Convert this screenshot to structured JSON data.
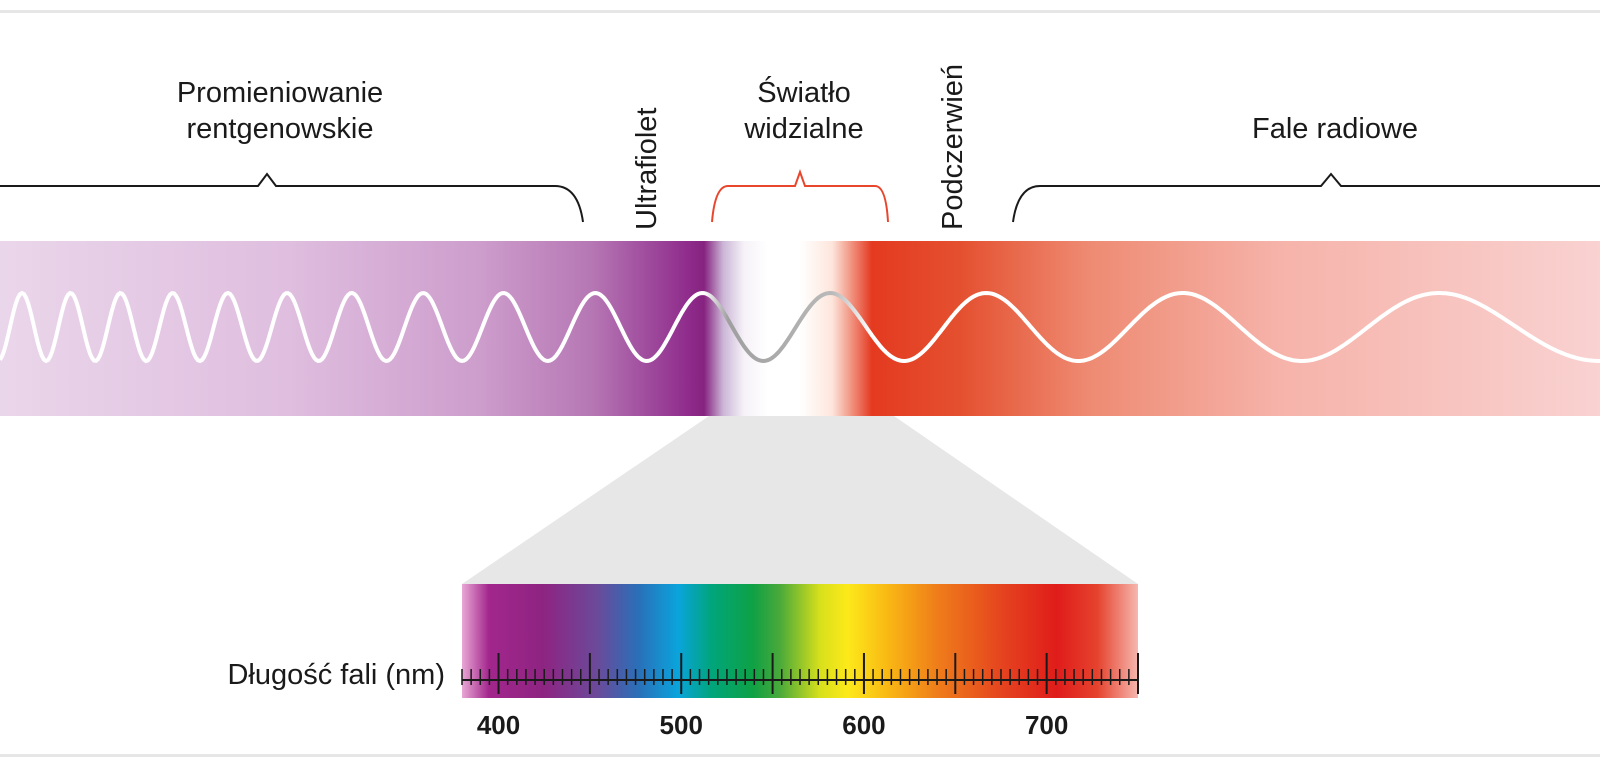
{
  "regions": {
    "xray": [
      "Promieniowanie",
      "rentgenowskie"
    ],
    "uv": "Ultrafiolet",
    "visible": [
      "Światło",
      "widzialne"
    ],
    "ir": "Podczerwień",
    "radio": "Fale radiowe"
  },
  "axis": {
    "label": "Długość fali (nm)",
    "ticks": [
      {
        "value": 400,
        "label": "400"
      },
      {
        "value": 500,
        "label": "500"
      },
      {
        "value": 600,
        "label": "600"
      },
      {
        "value": 700,
        "label": "700"
      }
    ],
    "range_nm": [
      380,
      750
    ],
    "minor_step_nm": 5
  },
  "colors": {
    "visible_bracket": "#e8472e",
    "bracket": "#1a1a1a",
    "wave": "#ffffff",
    "uv_purple": "#8a2a88",
    "ir_red": "#e43a20",
    "funnel": "#e8e7e8"
  }
}
